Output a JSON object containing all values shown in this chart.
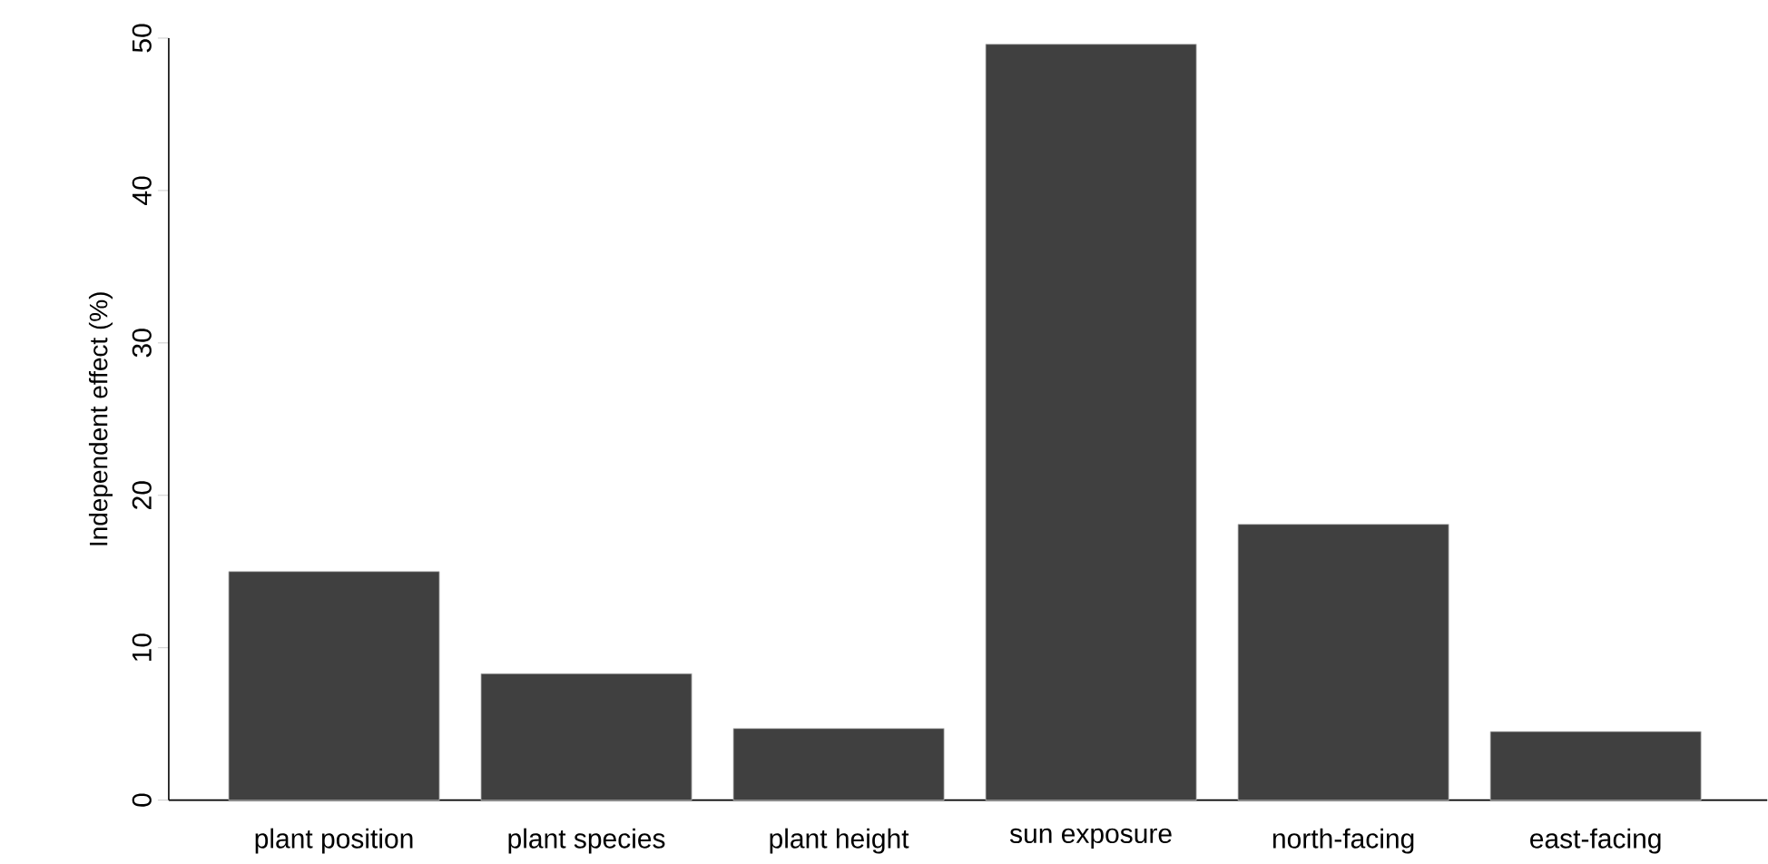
{
  "chart_data": {
    "type": "bar",
    "ylabel": "Independent effect (%)",
    "categories": [
      "plant position",
      "plant species",
      "plant height",
      "sun exposure",
      "north-facing",
      "east-facing"
    ],
    "values": [
      15.0,
      8.3,
      4.7,
      49.6,
      18.1,
      4.5
    ],
    "color": "#404040",
    "ylim": [
      0,
      50
    ],
    "yticks": [
      0,
      10,
      20,
      30,
      40,
      50
    ],
    "grid": false
  }
}
